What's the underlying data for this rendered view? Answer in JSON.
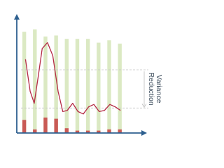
{
  "chart_data": {
    "type": "bar",
    "categories": [
      null,
      null,
      null,
      null,
      null,
      null,
      null,
      null,
      null,
      null
    ],
    "ylim": [
      0,
      100
    ],
    "xlim": [
      -0.7,
      10.9
    ],
    "axis_color": "#2d5f8f",
    "series": [
      {
        "color": "#dbe9c3",
        "values": [
          85,
          87,
          81,
          82,
          79,
          79,
          79,
          76,
          78,
          75
        ]
      },
      {
        "color": "#c95a55",
        "values": [
          11,
          3,
          13,
          12,
          4,
          2,
          2,
          2,
          3,
          3
        ]
      }
    ],
    "curve": {
      "color": "#b52a45",
      "x": [
        0.12,
        0.56,
        0.94,
        1.31,
        1.69,
        2.19,
        2.69,
        3.19,
        3.63,
        4.06,
        4.56,
        5.06,
        5.56,
        6.06,
        6.56,
        7.06,
        7.56,
        8.06,
        8.56,
        9.06
      ],
      "values": [
        62,
        35,
        25,
        47,
        71,
        76,
        65,
        35,
        18,
        19,
        25,
        18,
        16,
        22,
        24,
        18,
        19,
        24,
        22,
        19
      ]
    },
    "reference_lines": [
      53,
      21
    ],
    "annotation": [
      "Variance",
      "Reduction"
    ]
  }
}
